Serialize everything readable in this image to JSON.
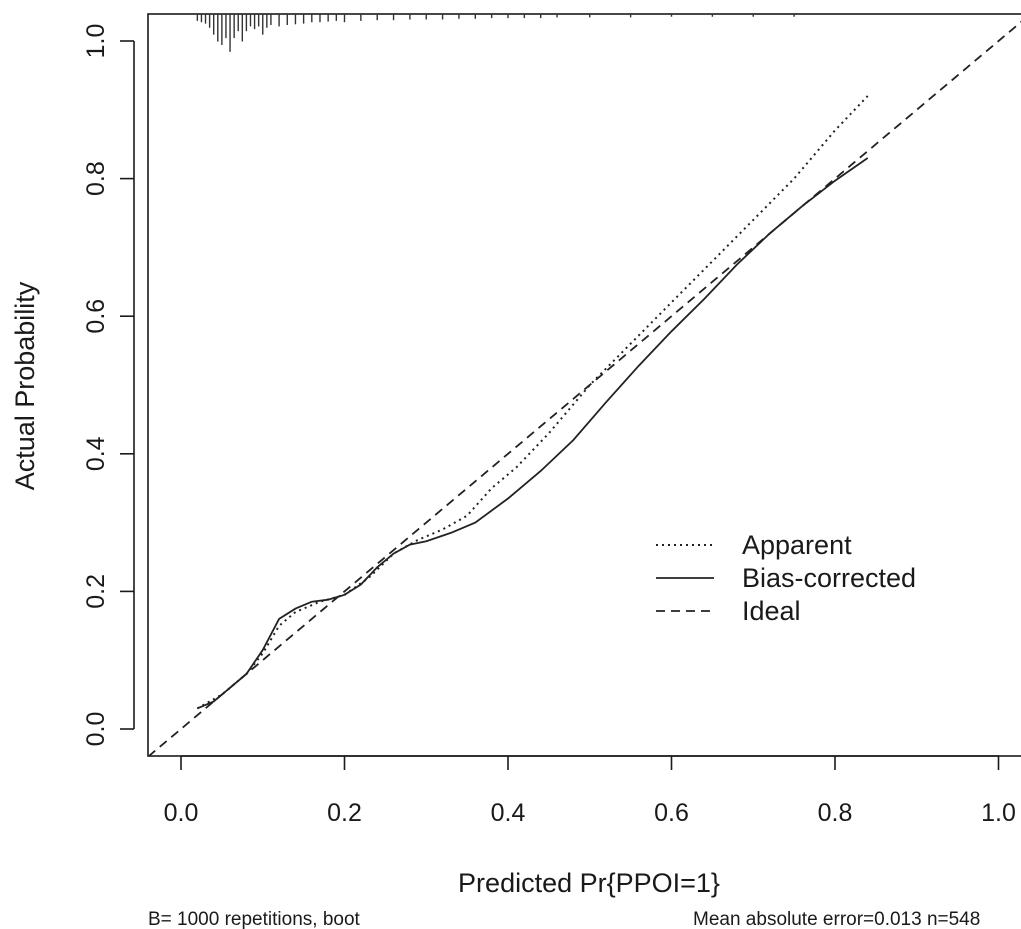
{
  "chart_data": {
    "type": "line",
    "xlabel": "Predicted Pr{PPOI=1}",
    "ylabel": "Actual Probability",
    "xlim": [
      -0.04,
      1.04
    ],
    "ylim": [
      -0.04,
      1.04
    ],
    "x_ticks": [
      "0.0",
      "0.2",
      "0.4",
      "0.6",
      "0.8",
      "1.0"
    ],
    "y_ticks": [
      "0.0",
      "0.2",
      "0.4",
      "0.6",
      "0.8",
      "1.0"
    ],
    "legend_position": "right-center",
    "series": [
      {
        "name": "Apparent",
        "style": "dotted",
        "x": [
          0.02,
          0.05,
          0.08,
          0.1,
          0.12,
          0.14,
          0.17,
          0.2,
          0.23,
          0.26,
          0.29,
          0.32,
          0.35,
          0.38,
          0.41,
          0.45,
          0.5,
          0.55,
          0.6,
          0.65,
          0.7,
          0.75,
          0.8,
          0.84
        ],
        "y": [
          0.03,
          0.05,
          0.08,
          0.11,
          0.15,
          0.17,
          0.185,
          0.195,
          0.22,
          0.255,
          0.275,
          0.29,
          0.31,
          0.35,
          0.38,
          0.43,
          0.5,
          0.56,
          0.62,
          0.68,
          0.74,
          0.8,
          0.87,
          0.92
        ]
      },
      {
        "name": "Bias-corrected",
        "style": "solid",
        "x": [
          0.02,
          0.04,
          0.06,
          0.08,
          0.1,
          0.12,
          0.14,
          0.16,
          0.18,
          0.2,
          0.22,
          0.24,
          0.26,
          0.28,
          0.3,
          0.33,
          0.36,
          0.4,
          0.44,
          0.48,
          0.52,
          0.56,
          0.6,
          0.64,
          0.68,
          0.72,
          0.76,
          0.8,
          0.84
        ],
        "y": [
          0.03,
          0.04,
          0.06,
          0.08,
          0.115,
          0.16,
          0.175,
          0.185,
          0.188,
          0.195,
          0.21,
          0.235,
          0.255,
          0.268,
          0.273,
          0.285,
          0.3,
          0.335,
          0.375,
          0.42,
          0.475,
          0.528,
          0.578,
          0.625,
          0.675,
          0.72,
          0.76,
          0.797,
          0.83
        ]
      },
      {
        "name": "Ideal",
        "style": "dashed",
        "x": [
          -0.04,
          1.04
        ],
        "y": [
          -0.04,
          1.04
        ]
      }
    ],
    "rug": {
      "y_top": 1.04,
      "x": [
        0.02,
        0.025,
        0.03,
        0.035,
        0.04,
        0.045,
        0.05,
        0.055,
        0.06,
        0.065,
        0.07,
        0.075,
        0.08,
        0.085,
        0.09,
        0.095,
        0.1,
        0.105,
        0.11,
        0.12,
        0.13,
        0.14,
        0.15,
        0.16,
        0.17,
        0.18,
        0.19,
        0.2,
        0.22,
        0.24,
        0.26,
        0.28,
        0.3,
        0.32,
        0.34,
        0.36,
        0.38,
        0.4,
        0.42,
        0.44,
        0.46,
        0.5,
        0.55,
        0.6,
        0.65,
        0.7,
        0.75
      ],
      "length": [
        0.01,
        0.012,
        0.014,
        0.02,
        0.03,
        0.04,
        0.045,
        0.035,
        0.055,
        0.035,
        0.025,
        0.04,
        0.025,
        0.018,
        0.022,
        0.018,
        0.03,
        0.02,
        0.016,
        0.018,
        0.016,
        0.015,
        0.014,
        0.012,
        0.012,
        0.011,
        0.01,
        0.012,
        0.01,
        0.009,
        0.009,
        0.008,
        0.008,
        0.008,
        0.007,
        0.007,
        0.006,
        0.006,
        0.006,
        0.006,
        0.005,
        0.005,
        0.005,
        0.004,
        0.004,
        0.004,
        0.004
      ]
    },
    "footnote_left": "B= 1000 repetitions, boot",
    "footnote_right": "Mean absolute error=0.013 n=548"
  }
}
